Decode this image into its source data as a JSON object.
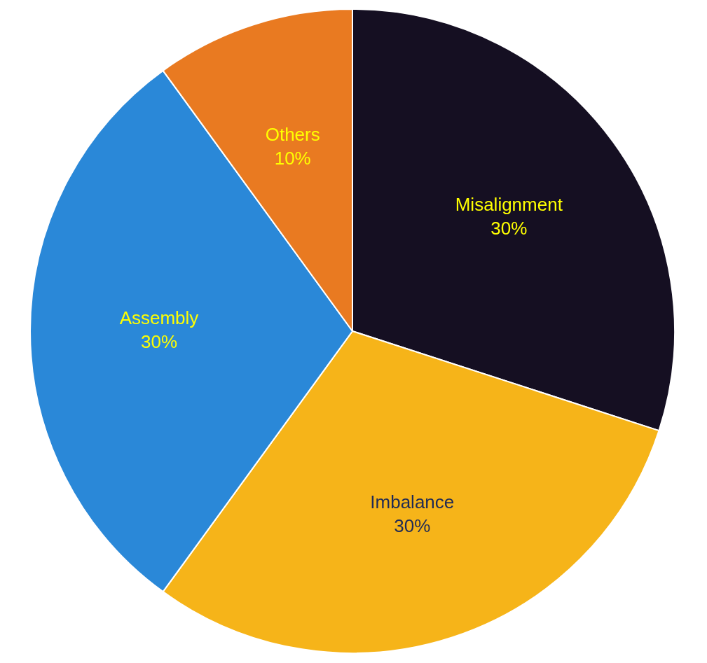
{
  "chart_data": {
    "type": "pie",
    "categories": [
      "Misalignment",
      "Imbalance",
      "Assembly",
      "Others"
    ],
    "values": [
      30,
      30,
      30,
      10
    ],
    "colors": [
      "#150f22",
      "#f6b419",
      "#2a88d8",
      "#e97a21"
    ],
    "value_labels": [
      "30%",
      "30%",
      "30%",
      "10%"
    ],
    "legend": false
  }
}
